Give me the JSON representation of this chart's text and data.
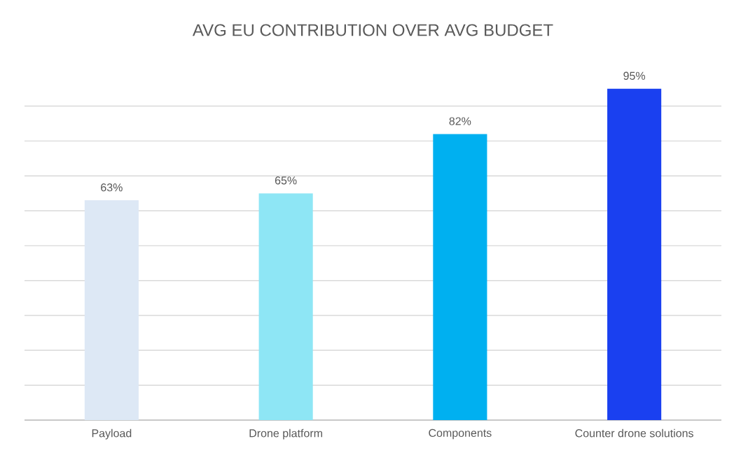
{
  "chart_data": {
    "type": "bar",
    "title": "AVG EU CONTRIBUTION OVER AVG BUDGET",
    "categories": [
      "Payload",
      "Drone platform",
      "Components",
      "Counter drone solutions"
    ],
    "values": [
      63,
      65,
      82,
      95
    ],
    "colors": [
      "#dde8f5",
      "#8ee6f5",
      "#00b0f0",
      "#1a40f0"
    ],
    "value_labels": [
      "63%",
      "65%",
      "82%",
      "95%"
    ],
    "grid": "y",
    "tick_labels": "x"
  }
}
